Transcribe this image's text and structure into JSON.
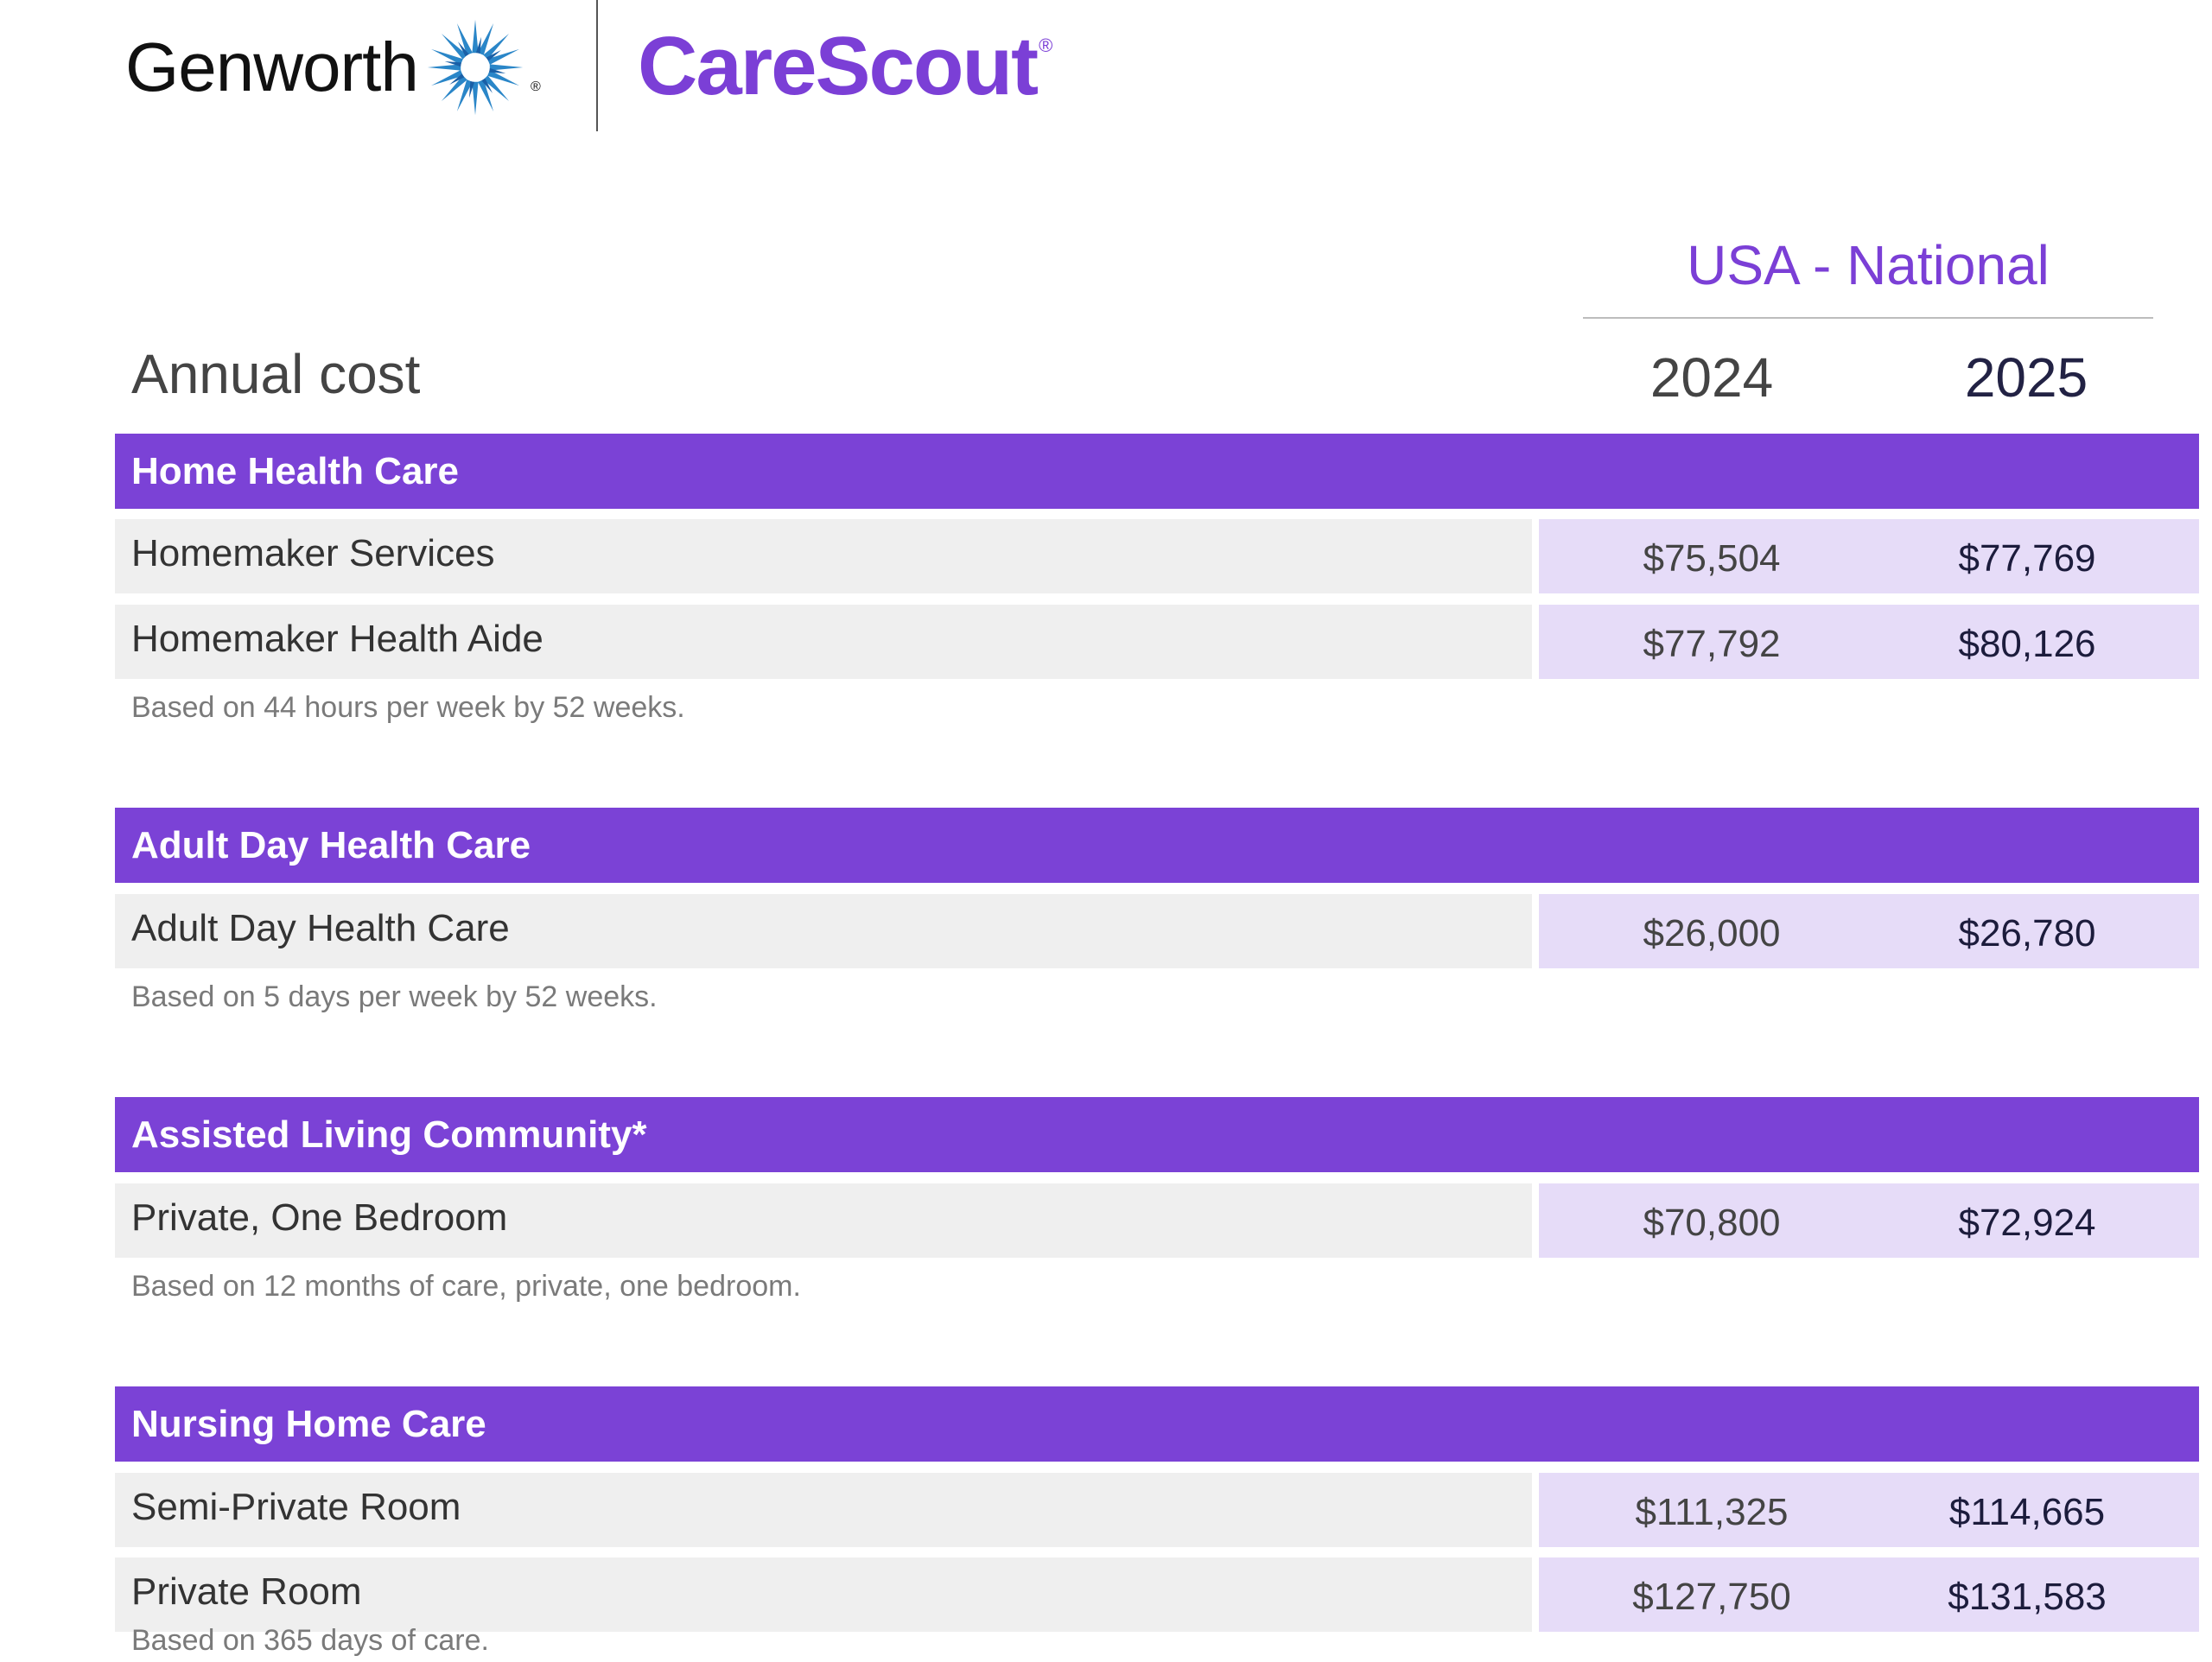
{
  "brand": {
    "genworth": "Genworth",
    "genworth_reg": "®",
    "genworth_mark_icon": "genworth-starburst-icon",
    "carescout": "CareScout",
    "carescout_reg": "®",
    "accent_color": "#7b42d6"
  },
  "header": {
    "region": "USA - National",
    "title": "Annual cost",
    "year_a": "2024",
    "year_b": "2025"
  },
  "sections": [
    {
      "title": "Home Health Care",
      "rows": [
        {
          "label": "Homemaker Services",
          "v2024": "$75,504",
          "v2025": "$77,769"
        },
        {
          "label": "Homemaker Health Aide",
          "v2024": "$77,792",
          "v2025": "$80,126"
        }
      ],
      "note": "Based on 44 hours per week by 52 weeks."
    },
    {
      "title": "Adult Day Health Care",
      "rows": [
        {
          "label": "Adult Day Health Care",
          "v2024": "$26,000",
          "v2025": "$26,780"
        }
      ],
      "note": "Based on 5 days per week by 52 weeks."
    },
    {
      "title": "Assisted Living Community*",
      "rows": [
        {
          "label": "Private, One Bedroom",
          "v2024": "$70,800",
          "v2025": "$72,924"
        }
      ],
      "note": "Based on 12 months of care, private, one bedroom."
    },
    {
      "title": "Nursing Home Care",
      "rows": [
        {
          "label": "Semi-Private Room",
          "v2024": "$111,325",
          "v2025": "$114,665"
        },
        {
          "label": "Private Room",
          "v2024": "$127,750",
          "v2025": "$131,583"
        }
      ],
      "note": "Based on 365 days of care."
    }
  ]
}
